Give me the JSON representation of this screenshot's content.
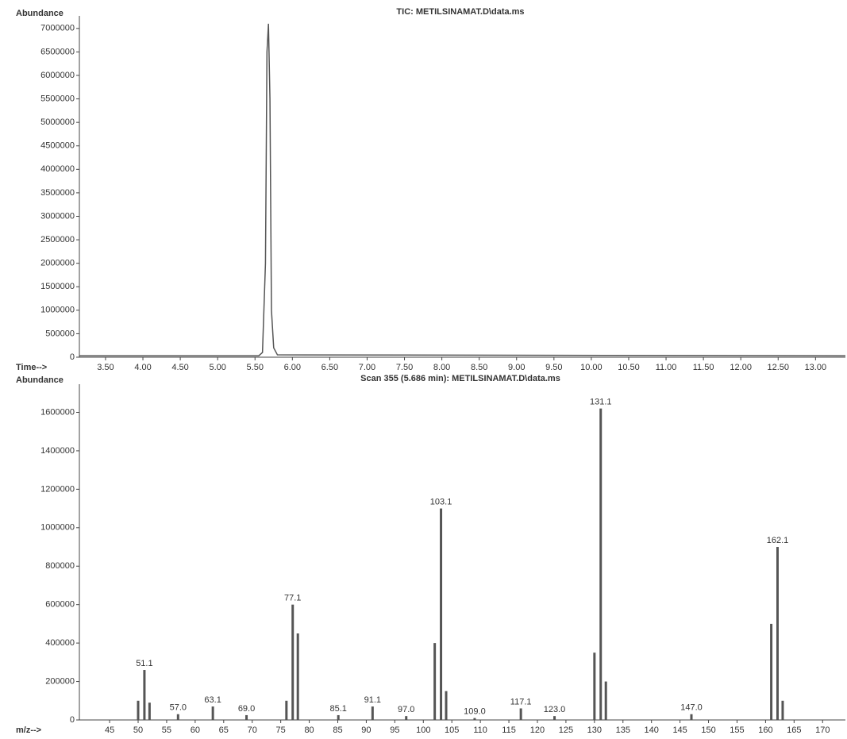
{
  "chart_data": [
    {
      "type": "line",
      "title": "TIC: METILSINAMAT.D\\data.ms",
      "y_label": "Abundance",
      "x_label": "Time-->",
      "color": "#555555",
      "x": [
        3.15,
        5.55,
        5.6,
        5.64,
        5.66,
        5.68,
        5.7,
        5.72,
        5.75,
        5.8,
        13.4
      ],
      "values": [
        30000,
        30000,
        100000,
        2000000,
        6500000,
        7100000,
        5500000,
        1000000,
        200000,
        50000,
        30000
      ],
      "xlim": [
        3.15,
        13.4
      ],
      "ylim": [
        0,
        7200000
      ],
      "xticks": [
        {
          "value": 3.5,
          "label": "3.50"
        },
        {
          "value": 4,
          "label": "4.00"
        },
        {
          "value": 4.5,
          "label": "4.50"
        },
        {
          "value": 5,
          "label": "5.00"
        },
        {
          "value": 5.5,
          "label": "5.50"
        },
        {
          "value": 6,
          "label": "6.00"
        },
        {
          "value": 6.5,
          "label": "6.50"
        },
        {
          "value": 7,
          "label": "7.00"
        },
        {
          "value": 7.5,
          "label": "7.50"
        },
        {
          "value": 8,
          "label": "8.00"
        },
        {
          "value": 8.5,
          "label": "8.50"
        },
        {
          "value": 9,
          "label": "9.00"
        },
        {
          "value": 9.5,
          "label": "9.50"
        },
        {
          "value": 10,
          "label": "10.00"
        },
        {
          "value": 10.5,
          "label": "10.50"
        },
        {
          "value": 11,
          "label": "11.00"
        },
        {
          "value": 11.5,
          "label": "11.50"
        },
        {
          "value": 12,
          "label": "12.00"
        },
        {
          "value": 12.5,
          "label": "12.50"
        },
        {
          "value": 13,
          "label": "13.00"
        }
      ],
      "yticks": [
        0,
        500000,
        1000000,
        1500000,
        2000000,
        2500000,
        3000000,
        3500000,
        4000000,
        4500000,
        5000000,
        5500000,
        6000000,
        6500000,
        7000000
      ]
    },
    {
      "type": "bar",
      "title": "Scan 355 (5.686 min): METILSINAMAT.D\\data.ms",
      "y_label": "Abundance",
      "x_label": "m/z-->",
      "color": "#555555",
      "x": [
        50,
        51.1,
        52,
        57,
        63.1,
        69,
        76,
        77.1,
        78,
        85.1,
        91.1,
        97,
        102,
        103.1,
        104,
        109,
        117.1,
        123,
        130,
        131.1,
        132,
        147,
        161,
        162.1,
        163
      ],
      "x_labels": [
        null,
        "51.1",
        null,
        "57.0",
        "63.1",
        "69.0",
        null,
        "77.1",
        null,
        "85.1",
        "91.1",
        "97.0",
        null,
        "103.1",
        null,
        "109.0",
        "117.1",
        "123.0",
        null,
        "131.1",
        null,
        "147.0",
        null,
        "162.1",
        null
      ],
      "values": [
        100000,
        260000,
        90000,
        30000,
        70000,
        25000,
        100000,
        600000,
        450000,
        25000,
        70000,
        20000,
        400000,
        1100000,
        150000,
        10000,
        60000,
        20000,
        350000,
        1620000,
        200000,
        30000,
        500000,
        900000,
        100000
      ],
      "xlim": [
        39.7,
        174
      ],
      "ylim": [
        0,
        1730000
      ],
      "xticks": [
        45,
        50,
        55,
        60,
        65,
        70,
        75,
        80,
        85,
        90,
        95,
        100,
        105,
        110,
        115,
        120,
        125,
        130,
        135,
        140,
        145,
        150,
        155,
        160,
        165,
        170
      ],
      "yticks": [
        0,
        200000,
        400000,
        600000,
        800000,
        1000000,
        1200000,
        1400000,
        1600000
      ]
    }
  ]
}
